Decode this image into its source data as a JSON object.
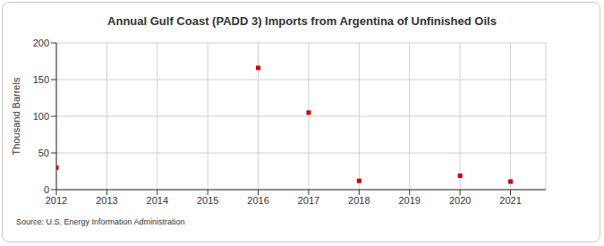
{
  "chart_data": {
    "type": "scatter",
    "title": "Annual Gulf Coast (PADD 3) Imports from Argentina of Unfinished Oils",
    "y_label": "Thousand Barrels",
    "annotations": [
      "Source: U.S. Energy Information Administration"
    ],
    "x": [
      2012,
      2016,
      2017,
      2018,
      2020,
      2021
    ],
    "values": [
      30,
      166,
      105,
      12,
      19,
      11
    ],
    "color": "#cc0000",
    "marker": "square",
    "xlim": [
      2012,
      2021.7
    ],
    "xticks": [
      2012,
      2013,
      2014,
      2015,
      2016,
      2017,
      2018,
      2019,
      2020,
      2021
    ],
    "ylim": [
      0,
      200
    ],
    "yticks": [
      0,
      50,
      100,
      150,
      200
    ],
    "grid": true
  }
}
